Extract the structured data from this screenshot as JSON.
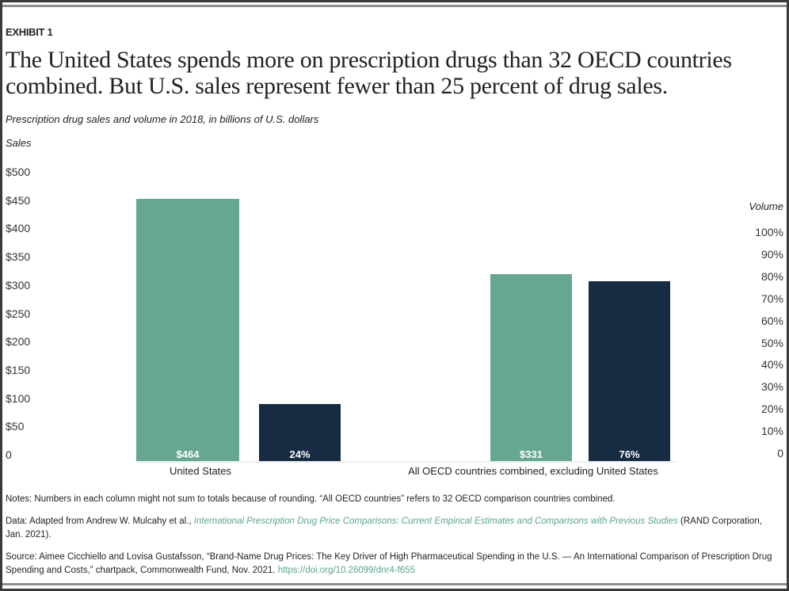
{
  "exhibit": "EXHIBIT 1",
  "title": "The United States spends more on prescription drugs than 32 OECD countries combined. But U.S. sales represent fewer than 25 percent of drug sales.",
  "subtitle": "Prescription drug sales and volume in 2018, in billions of U.S. dollars",
  "chart_data": {
    "type": "bar",
    "categories": [
      "United States",
      "All OECD countries combined, excluding United States"
    ],
    "series": [
      {
        "name": "Sales",
        "axis": "left",
        "values": [
          464,
          331
        ],
        "labels": [
          "$464",
          "$331"
        ],
        "color": "#66a693"
      },
      {
        "name": "Volume",
        "axis": "right",
        "values": [
          24,
          76
        ],
        "labels": [
          "24%",
          "76%"
        ],
        "color": "#172b42"
      }
    ],
    "left_axis": {
      "label": "Sales",
      "ylim": [
        0,
        500
      ],
      "ticks": [
        "0",
        "$50",
        "$100",
        "$150",
        "$200",
        "$250",
        "$300",
        "$350",
        "$400",
        "$450",
        "$500"
      ]
    },
    "right_axis": {
      "label": "Volume",
      "ylim": [
        0,
        100
      ],
      "ticks": [
        "0",
        "10%",
        "20%",
        "30%",
        "40%",
        "50%",
        "60%",
        "70%",
        "80%",
        "90%",
        "100%"
      ]
    },
    "grid": false
  },
  "notes": {
    "notes": "Notes: Numbers in each column might not sum to totals because of rounding. “All OECD countries” refers to 32 OECD comparison countries combined.",
    "data_prefix": "Data: Adapted from Andrew W. Mulcahy et al., ",
    "data_link": "International Prescription Drug Price Comparisons: Current Empirical Estimates and Comparisons with Previous Studies",
    "data_suffix": " (RAND Corporation, Jan. 2021).",
    "source_prefix": "Source: Aimee Cicchiello and Lovisa Gustafsson, “Brand-Name Drug Prices: The Key Driver of High Pharmaceutical Spending in the U.S. — An International Comparison of Prescription Drug Spending and Costs,” chartpack, Commonwealth Fund, Nov. 2021. ",
    "source_link": "https://doi.org/10.26099/dnr4-f655"
  }
}
